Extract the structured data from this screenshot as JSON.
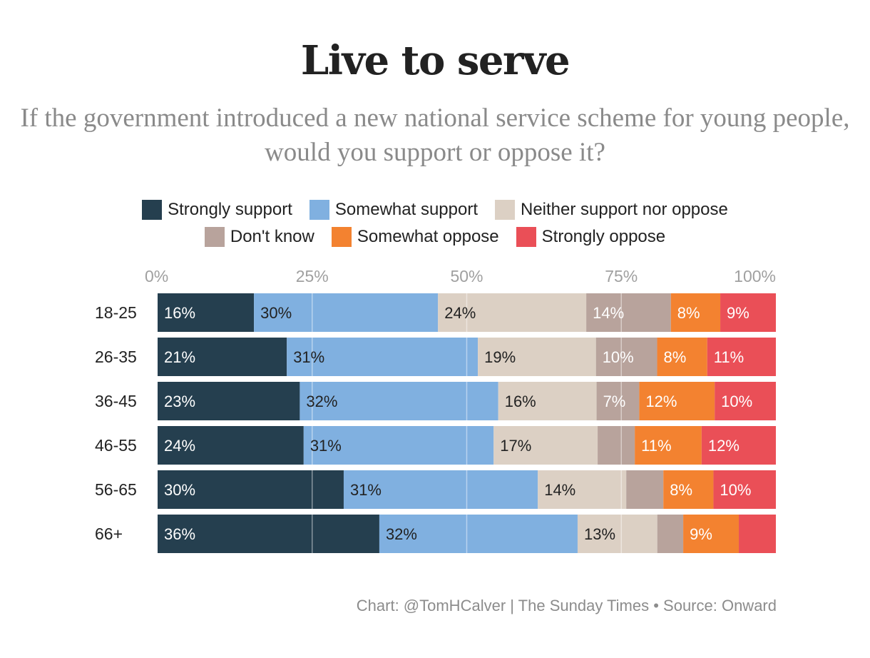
{
  "chart_data": {
    "type": "bar",
    "orientation": "horizontal",
    "stacked": "percent",
    "title": "Live to serve",
    "subtitle": "If the government introduced a new national service scheme for young people, would you support or oppose it?",
    "xlabel": "",
    "ylabel": "",
    "xlim": [
      0,
      100
    ],
    "x_ticks": [
      "0%",
      "25%",
      "50%",
      "75%",
      "100%"
    ],
    "x_tick_values": [
      0,
      25,
      50,
      75,
      100
    ],
    "grid": true,
    "legend_position": "top-center",
    "categories": [
      "18-25",
      "26-35",
      "36-45",
      "46-55",
      "56-65",
      "66+"
    ],
    "series": [
      {
        "name": "Strongly support",
        "color": "#253f4f",
        "values": [
          15.6,
          20.9,
          23.0,
          23.6,
          30.1,
          35.9
        ],
        "labels": [
          "16%",
          "21%",
          "23%",
          "24%",
          "30%",
          "36%"
        ],
        "label_color": "#ffffff"
      },
      {
        "name": "Somewhat support",
        "color": "#80b0e0",
        "values": [
          29.8,
          30.9,
          32.1,
          30.7,
          31.4,
          32.1
        ],
        "labels": [
          "30%",
          "31%",
          "32%",
          "31%",
          "31%",
          "32%"
        ],
        "label_color": "#222222"
      },
      {
        "name": "Neither support nor oppose",
        "color": "#dcd0c4",
        "values": [
          24.0,
          19.1,
          15.9,
          16.8,
          14.3,
          12.9
        ],
        "labels": [
          "24%",
          "19%",
          "16%",
          "17%",
          "14%",
          "13%"
        ],
        "label_color": "#222222"
      },
      {
        "name": "Don't know",
        "color": "#b8a39c",
        "values": [
          13.7,
          9.9,
          6.9,
          6.0,
          6.0,
          4.2
        ],
        "labels": [
          "14%",
          "10%",
          "7%",
          "",
          "",
          ""
        ],
        "label_color": "#ffffff"
      },
      {
        "name": "Somewhat oppose",
        "color": "#f38230",
        "values": [
          8.0,
          8.1,
          12.2,
          10.8,
          8.1,
          9.0
        ],
        "labels": [
          "8%",
          "8%",
          "12%",
          "11%",
          "8%",
          "9%"
        ],
        "label_color": "#ffffff"
      },
      {
        "name": "Strongly oppose",
        "color": "#ea4f57",
        "values": [
          9.0,
          11.1,
          9.9,
          12.0,
          10.1,
          6.0
        ],
        "labels": [
          "9%",
          "11%",
          "10%",
          "12%",
          "10%",
          ""
        ],
        "label_color": "#ffffff"
      }
    ],
    "source": "Chart: @TomHCalver | The Sunday Times • Source: Onward"
  }
}
